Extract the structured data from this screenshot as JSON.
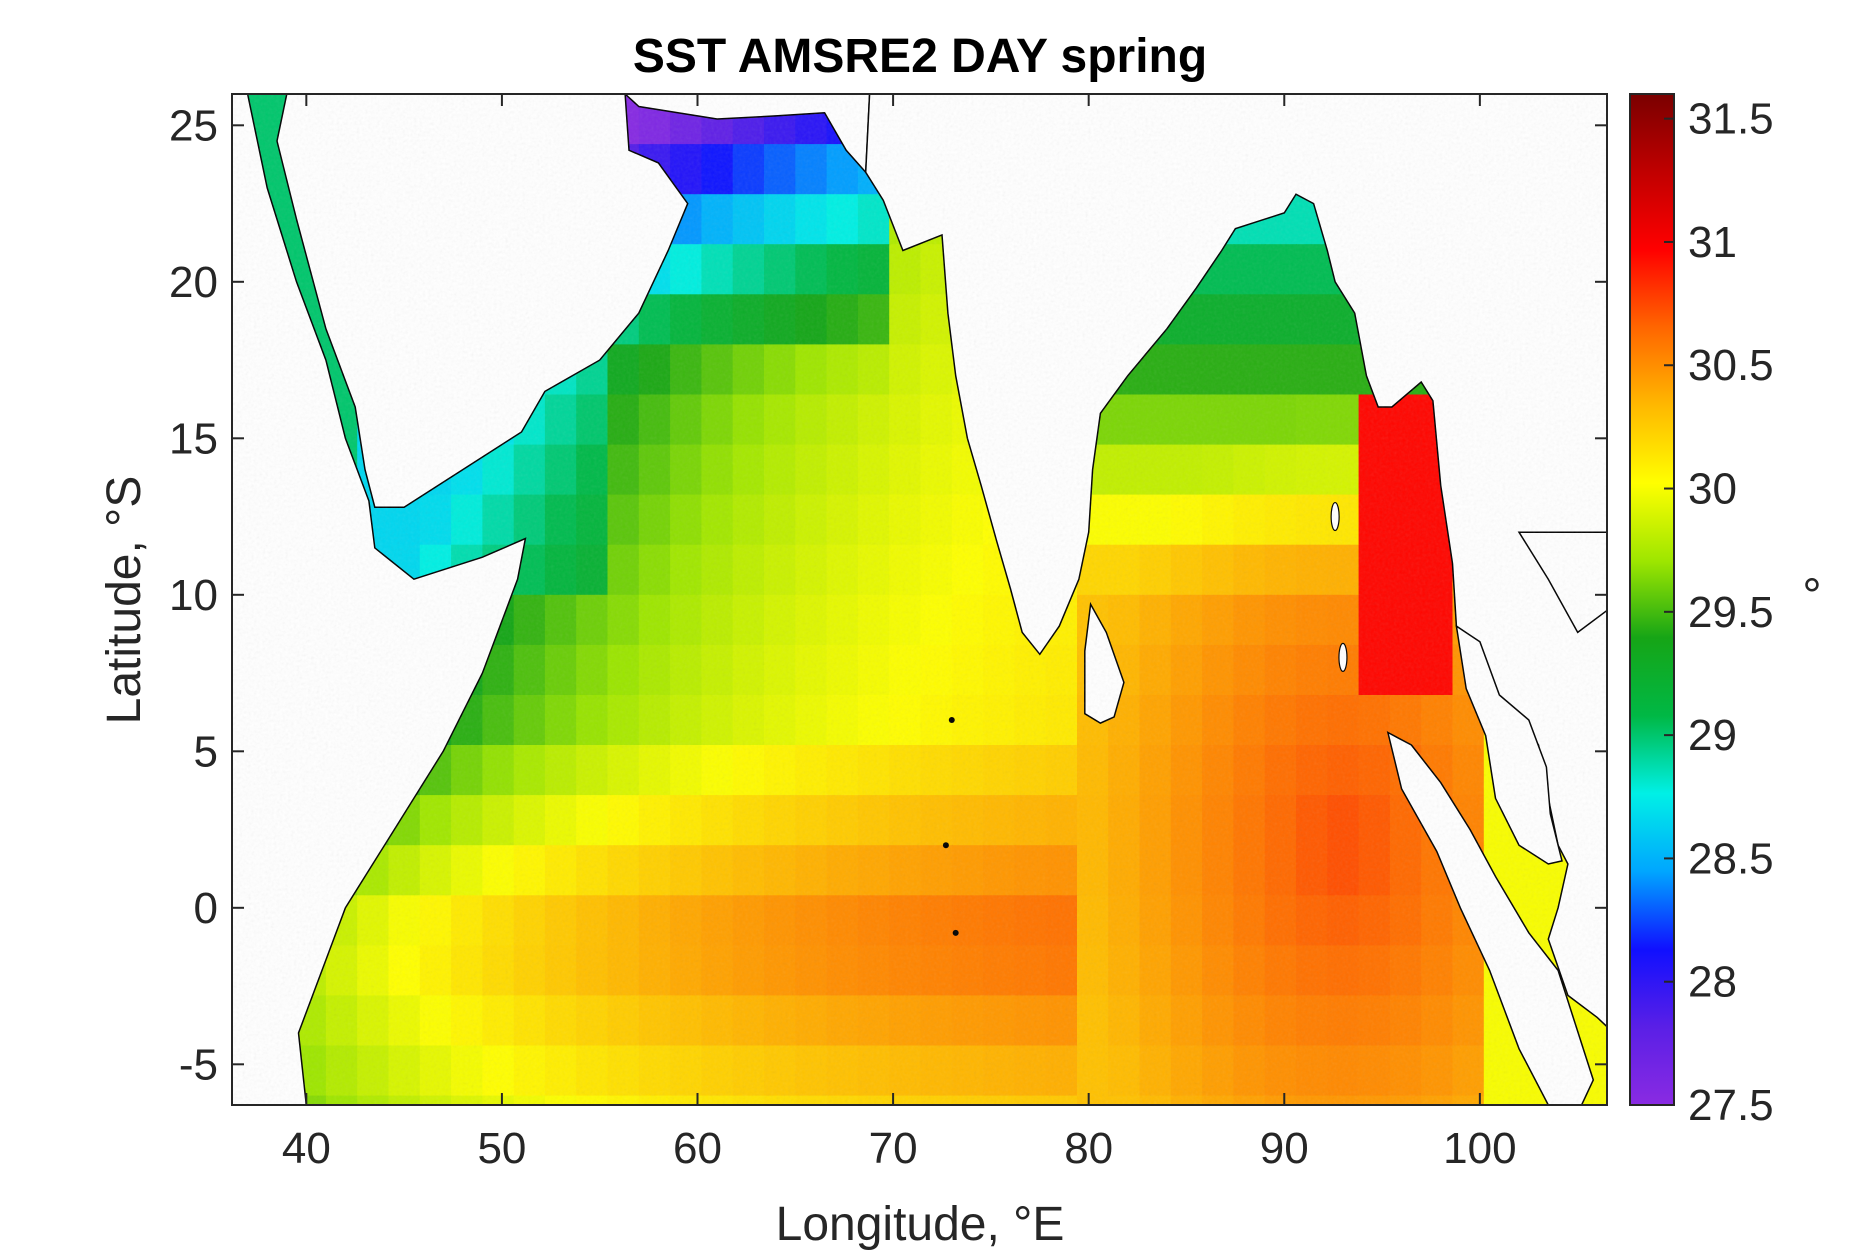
{
  "chart_data": {
    "type": "heatmap",
    "title": "SST AMSRE2 DAY spring",
    "xlabel": "Longitude, °E",
    "ylabel": "Latitude, °S",
    "xlim": [
      36.2,
      106.5
    ],
    "ylim": [
      -6.3,
      26
    ],
    "x_ticks": [
      40,
      50,
      60,
      70,
      80,
      90,
      100
    ],
    "y_ticks": [
      -5,
      0,
      5,
      10,
      15,
      20,
      25
    ],
    "colorbar": {
      "label": "°",
      "range": [
        27.5,
        31.6
      ],
      "ticks": [
        27.5,
        28,
        28.5,
        29,
        29.5,
        30,
        30.5,
        31,
        31.5
      ],
      "colormap": [
        "#8a2be2",
        "#5a1fe6",
        "#1010ff",
        "#00a6ff",
        "#00f0e6",
        "#00b845",
        "#16a516",
        "#9ee600",
        "#ffff00",
        "#ffb800",
        "#ff6600",
        "#ff0000",
        "#c00000",
        "#7a0000"
      ]
    },
    "land_color": "#ffffff",
    "coastline_color": "#000000"
  }
}
